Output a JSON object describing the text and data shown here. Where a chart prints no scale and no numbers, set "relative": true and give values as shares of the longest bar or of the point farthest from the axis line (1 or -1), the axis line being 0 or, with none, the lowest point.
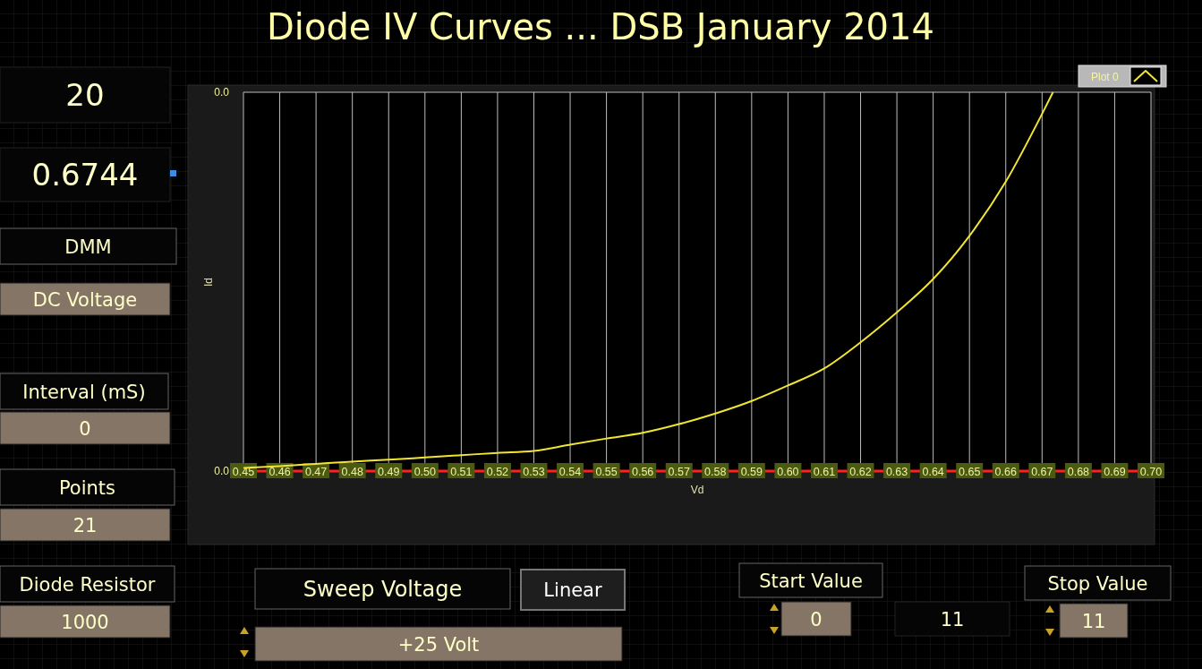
{
  "chart_data": [
    {
      "type": "line",
      "title": "Diode IV Curves ... DSB January 2014",
      "xlabel": "Vd",
      "ylabel": "Id",
      "relative": true,
      "grid": "x",
      "legend": "top right",
      "marker": "none",
      "line_style": "solid",
      "x": [
        0.45,
        0.46,
        0.47,
        0.48,
        0.49,
        0.5,
        0.51,
        0.52,
        0.53,
        0.54,
        0.55,
        0.56,
        0.57,
        0.58,
        0.59,
        0.6,
        0.61,
        0.62,
        0.63,
        0.64,
        0.65,
        0.66,
        0.67,
        0.673
      ],
      "series": [
        {
          "name": "Plot 0",
          "color": "#f2e432",
          "values": [
            0.008,
            0.013,
            0.019,
            0.025,
            0.03,
            0.036,
            0.042,
            0.048,
            0.053,
            0.07,
            0.086,
            0.101,
            0.124,
            0.152,
            0.185,
            0.226,
            0.271,
            0.34,
            0.419,
            0.507,
            0.621,
            0.764,
            0.943,
            1
          ]
        }
      ],
      "xlim": [
        0.45,
        0.7
      ],
      "xticks": [
        0.45,
        0.46,
        0.47,
        0.48,
        0.49,
        {
          "value": 0.5,
          "label": "0.50"
        },
        0.51,
        0.52,
        0.53,
        0.54,
        0.55,
        0.56,
        0.57,
        0.58,
        0.59,
        {
          "value": 0.6,
          "label": "0.60"
        },
        0.61,
        0.62,
        0.63,
        0.64,
        0.65,
        0.66,
        0.67,
        0.68,
        0.69,
        {
          "value": 0.7,
          "label": "0.70"
        }
      ],
      "annotations": [
        "0.0",
        "0.0"
      ]
    },
    {
      "type": "other",
      "annotations": [
        "20",
        "0.6744",
        "DMM",
        "DC Voltage",
        "Interval (mS)",
        "0",
        "Points",
        "21",
        "Diode Resistor",
        "1000",
        "Sweep Voltage",
        "Linear",
        "+25 Volt",
        "Start Value",
        "0",
        "11",
        "Stop Value",
        "11"
      ]
    }
  ]
}
